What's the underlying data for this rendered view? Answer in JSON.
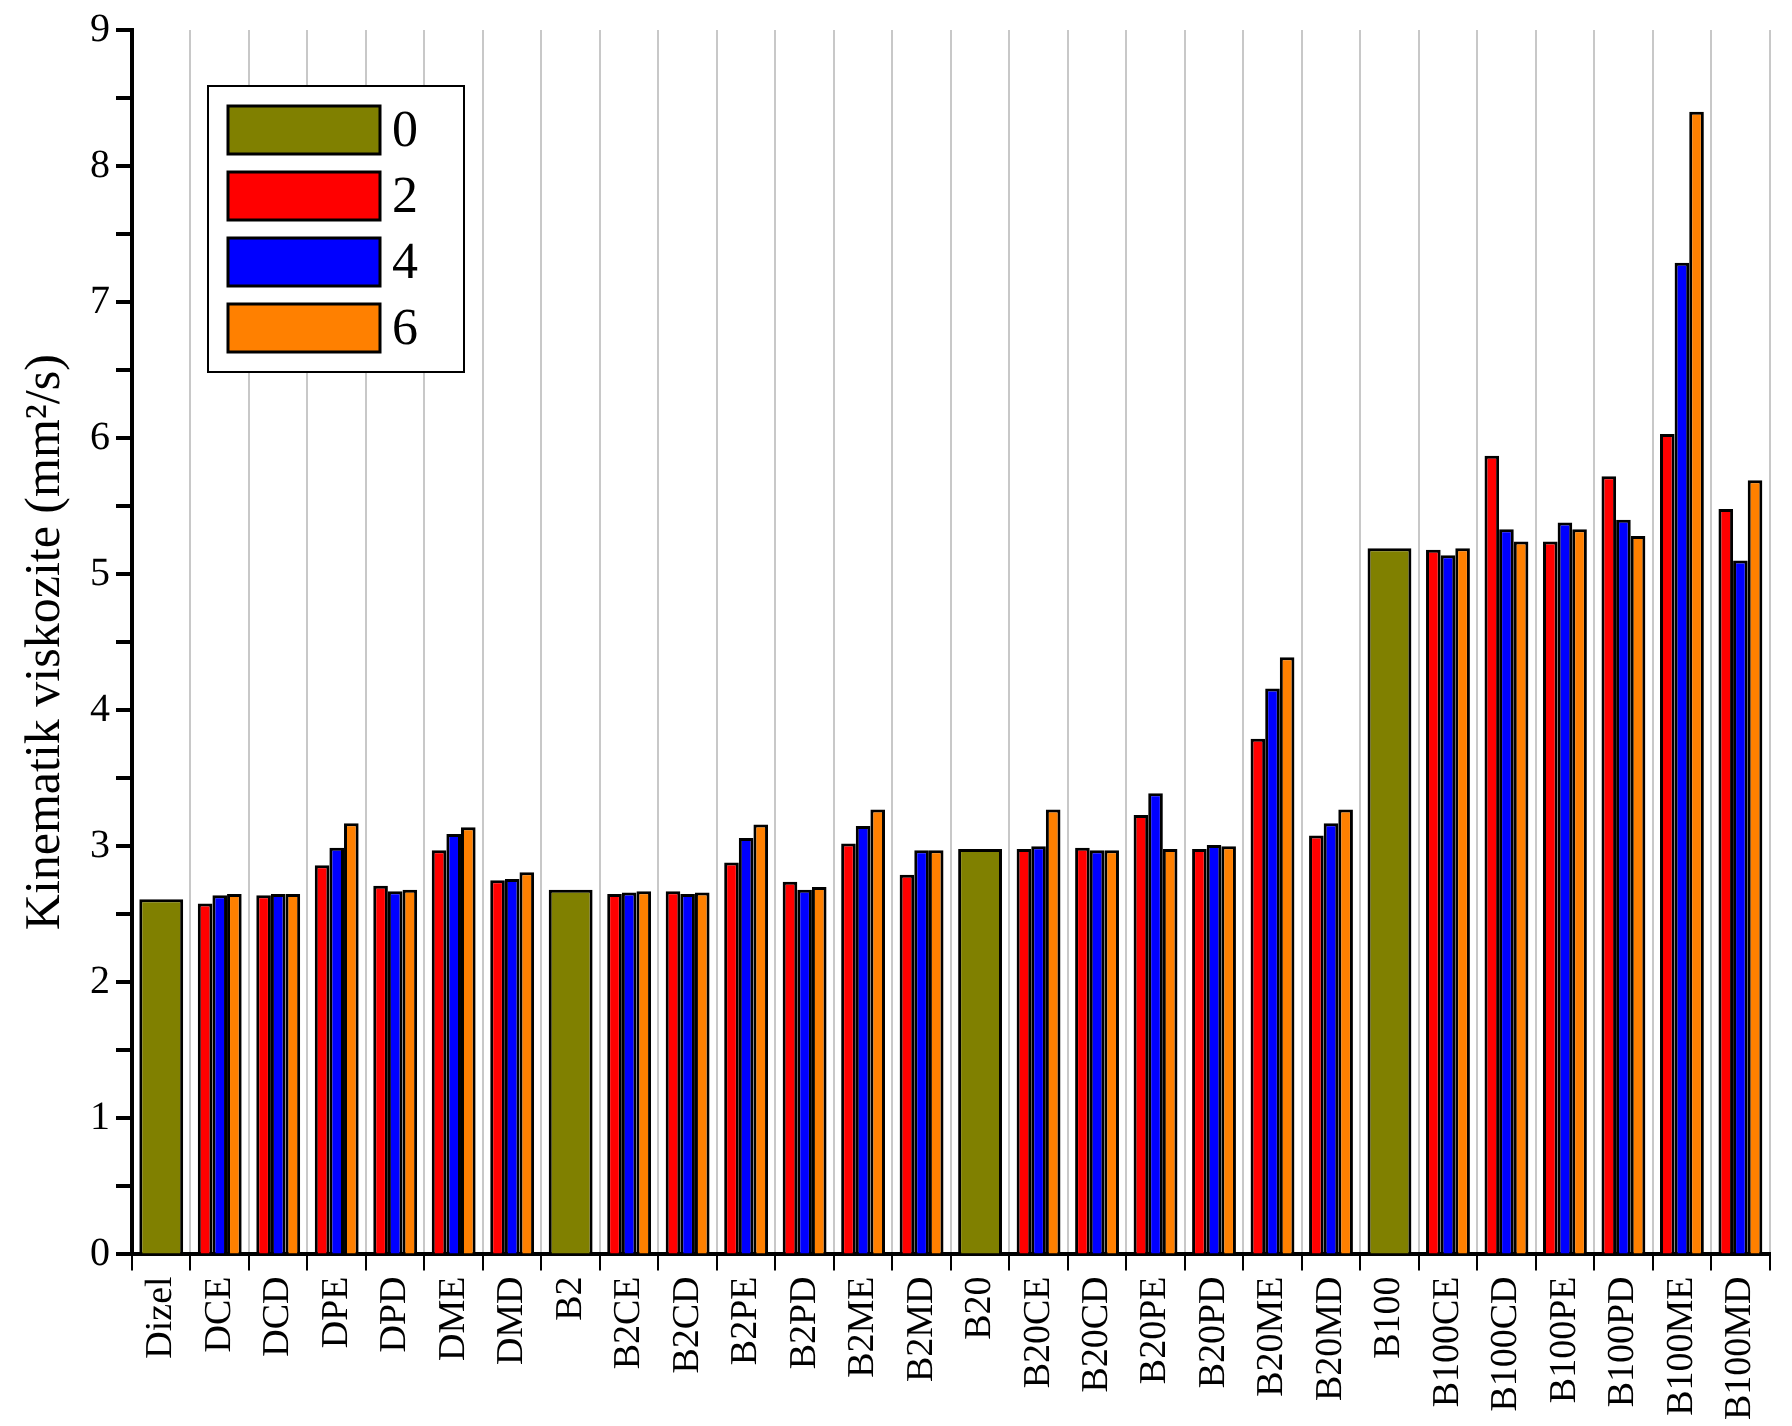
{
  "chart_data": {
    "type": "bar",
    "ylabel": "Kinematik viskozite (mm²/s)",
    "categories": [
      "Dizel",
      "DCE",
      "DCD",
      "DPE",
      "DPD",
      "DME",
      "DMD",
      "B2",
      "B2CE",
      "B2CD",
      "B2PE",
      "B2PD",
      "B2ME",
      "B2MD",
      "B20",
      "B20CE",
      "B20CD",
      "B20PE",
      "B20PD",
      "B20ME",
      "B20MD",
      "B100",
      "B100CE",
      "B100CD",
      "B100PE",
      "B100PD",
      "B100ME",
      "B100MD"
    ],
    "series": [
      {
        "name": "0",
        "color": "#808000",
        "values": [
          2.61,
          null,
          null,
          null,
          null,
          null,
          null,
          2.68,
          null,
          null,
          null,
          null,
          null,
          null,
          2.98,
          null,
          null,
          null,
          null,
          null,
          null,
          5.19,
          null,
          null,
          null,
          null,
          null,
          null
        ]
      },
      {
        "name": "2",
        "color": "#ff0000",
        "values": [
          null,
          2.58,
          2.64,
          2.86,
          2.71,
          2.97,
          2.75,
          null,
          2.65,
          2.67,
          2.88,
          2.74,
          3.02,
          2.79,
          null,
          2.98,
          2.99,
          3.23,
          2.98,
          3.79,
          3.08,
          null,
          5.18,
          5.87,
          5.24,
          5.72,
          6.03,
          5.48
        ]
      },
      {
        "name": "4",
        "color": "#0000ff",
        "values": [
          null,
          2.64,
          2.65,
          2.99,
          2.67,
          3.09,
          2.76,
          null,
          2.66,
          2.65,
          3.06,
          2.68,
          3.15,
          2.97,
          null,
          3.0,
          2.97,
          3.39,
          3.01,
          4.16,
          3.17,
          null,
          5.14,
          5.33,
          5.38,
          5.4,
          7.29,
          5.1
        ]
      },
      {
        "name": "6",
        "color": "#ff8000",
        "values": [
          null,
          2.65,
          2.65,
          3.17,
          2.68,
          3.14,
          2.81,
          null,
          2.67,
          2.66,
          3.16,
          2.7,
          3.27,
          2.97,
          null,
          3.27,
          2.97,
          2.98,
          3.0,
          4.39,
          3.27,
          null,
          5.19,
          5.24,
          5.33,
          5.28,
          8.4,
          5.69
        ]
      }
    ],
    "ylim": [
      0,
      9
    ],
    "yticks": [
      0,
      {
        "value": 0.5,
        "label": null
      },
      1,
      {
        "value": 1.5,
        "label": null
      },
      2,
      {
        "value": 2.5,
        "label": null
      },
      3,
      {
        "value": 3.5,
        "label": null
      },
      4,
      {
        "value": 4.5,
        "label": null
      },
      5,
      {
        "value": 5.5,
        "label": null
      },
      6,
      {
        "value": 6.5,
        "label": null
      },
      7,
      {
        "value": 7.5,
        "label": null
      },
      8,
      {
        "value": 8.5,
        "label": null
      },
      9
    ],
    "grid": "x",
    "legend": "top left"
  }
}
